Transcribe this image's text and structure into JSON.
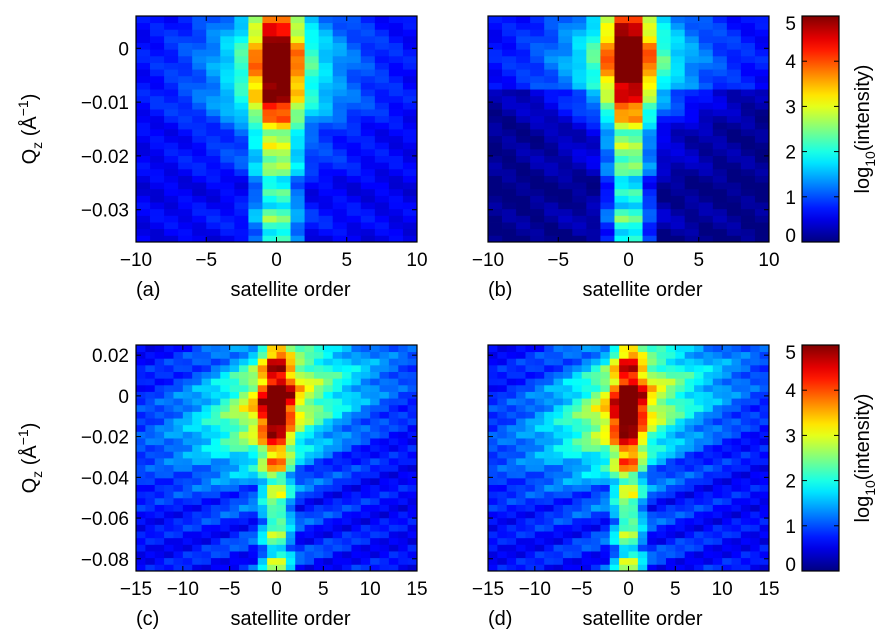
{
  "figure": {
    "colormap": "jet",
    "colorbar_label_base": "log",
    "colorbar_label_sub": "10",
    "colorbar_label_rest": "(intensity)"
  },
  "chart_data": [
    {
      "id": "a",
      "type": "heatmap",
      "panel_label": "(a)",
      "xlabel": "satellite order",
      "ylabel_base": "Q",
      "ylabel_sub": "z",
      "ylabel_unit_pre": " (Å",
      "ylabel_unit_sup": "−1",
      "ylabel_unit_post": ")",
      "xlim": [
        -10,
        10
      ],
      "ylim": [
        -0.036,
        0.006
      ],
      "xticks": [
        -10,
        -5,
        0,
        5,
        10
      ],
      "xtick_labels": [
        "−10",
        "−5",
        "0",
        "5",
        "10"
      ],
      "yticks": [
        0,
        -0.01,
        -0.02,
        -0.03
      ],
      "ytick_labels": [
        "0",
        "−0.01",
        "−0.02",
        "−0.03"
      ],
      "zlim": [
        0,
        5
      ],
      "ridge": "flat",
      "peak_qz": -0.003
    },
    {
      "id": "b",
      "type": "heatmap",
      "panel_label": "(b)",
      "xlabel": "satellite order",
      "xlim": [
        -10,
        10
      ],
      "ylim": [
        -0.036,
        0.006
      ],
      "xticks": [
        -10,
        -5,
        0,
        5,
        10
      ],
      "xtick_labels": [
        "−10",
        "−5",
        "0",
        "5",
        "10"
      ],
      "yticks": [
        0,
        -0.01,
        -0.02,
        -0.03
      ],
      "zlim": [
        0,
        5
      ],
      "ridge": "flat",
      "peak_qz": -0.002
    },
    {
      "id": "c",
      "type": "heatmap",
      "panel_label": "(c)",
      "xlabel": "satellite order",
      "ylabel_base": "Q",
      "ylabel_sub": "z",
      "ylabel_unit_pre": " (Å",
      "ylabel_unit_sup": "−1",
      "ylabel_unit_post": ")",
      "xlim": [
        -15,
        15
      ],
      "ylim": [
        -0.086,
        0.025
      ],
      "xticks": [
        -15,
        -10,
        -5,
        0,
        5,
        10,
        15
      ],
      "xtick_labels": [
        "−15",
        "−10",
        "−5",
        "0",
        "5",
        "10",
        "15"
      ],
      "yticks": [
        0.02,
        0,
        -0.02,
        -0.04,
        -0.06,
        -0.08
      ],
      "ytick_labels": [
        "0.02",
        "0",
        "−0.02",
        "−0.04",
        "−0.06",
        "−0.08"
      ],
      "zlim": [
        0,
        5
      ],
      "ridge": "tilted",
      "peak_qz": -0.003
    },
    {
      "id": "d",
      "type": "heatmap",
      "panel_label": "(d)",
      "xlabel": "satellite order",
      "xlim": [
        -15,
        15
      ],
      "ylim": [
        -0.086,
        0.025
      ],
      "xticks": [
        -15,
        -10,
        -5,
        0,
        5,
        10,
        15
      ],
      "xtick_labels": [
        "−15",
        "−10",
        "−5",
        "0",
        "5",
        "10",
        "15"
      ],
      "yticks": [
        0.02,
        0,
        -0.02,
        -0.04,
        -0.06,
        -0.08
      ],
      "zlim": [
        0,
        5
      ],
      "ridge": "tilted",
      "peak_qz": -0.005
    }
  ],
  "colorbars": [
    {
      "id": "cb-top",
      "ticks": [
        0,
        1,
        2,
        3,
        4,
        5
      ],
      "tick_labels": [
        "0",
        "1",
        "2",
        "3",
        "4",
        "5"
      ]
    },
    {
      "id": "cb-bottom",
      "ticks": [
        0,
        1,
        2,
        3,
        4,
        5
      ],
      "tick_labels": [
        "0",
        "1",
        "2",
        "3",
        "4",
        "5"
      ]
    }
  ]
}
